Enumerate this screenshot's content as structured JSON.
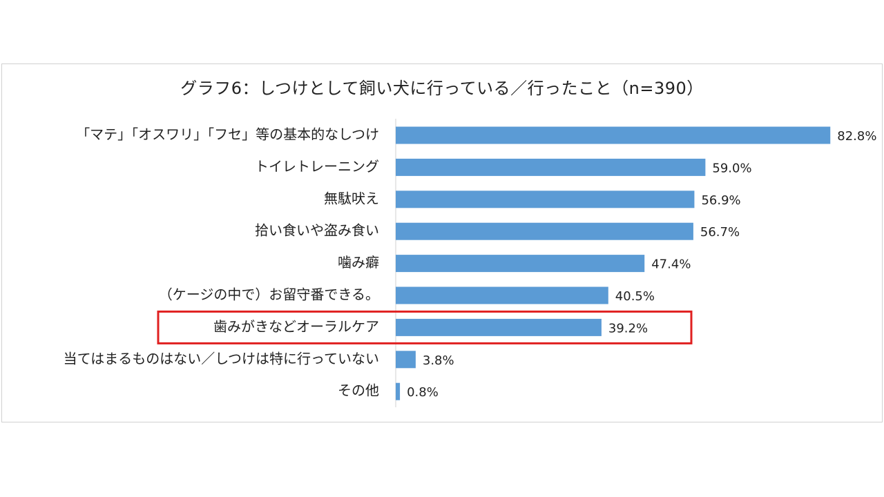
{
  "chart_data": {
    "type": "bar",
    "orientation": "horizontal",
    "title": "グラフ6：しつけとして飼い犬に行っている／行ったこと（n=390）",
    "categories": [
      "「マテ」「オスワリ」「フセ」等の基本的なしつけ",
      "トイレトレーニング",
      "無駄吠え",
      "拾い食いや盗み食い",
      "噛み癖",
      "（ケージの中で）お留守番できる。",
      "歯みがきなどオーラルケア",
      "当てはまるものはない／しつけは特に行っていない",
      "その他"
    ],
    "values": [
      82.8,
      59.0,
      56.9,
      56.7,
      47.4,
      40.5,
      39.2,
      3.8,
      0.8
    ],
    "value_labels": [
      "82.8%",
      "59.0%",
      "56.9%",
      "56.7%",
      "47.4%",
      "40.5%",
      "39.2%",
      "3.8%",
      "0.8%"
    ],
    "highlighted_category": "歯みがきなどオーラルケア",
    "xlim": [
      0,
      100
    ],
    "grid": false,
    "colors": {
      "bar": "#5b9bd5",
      "highlight_box": "#e02020",
      "axis": "#d0d0d0"
    }
  }
}
